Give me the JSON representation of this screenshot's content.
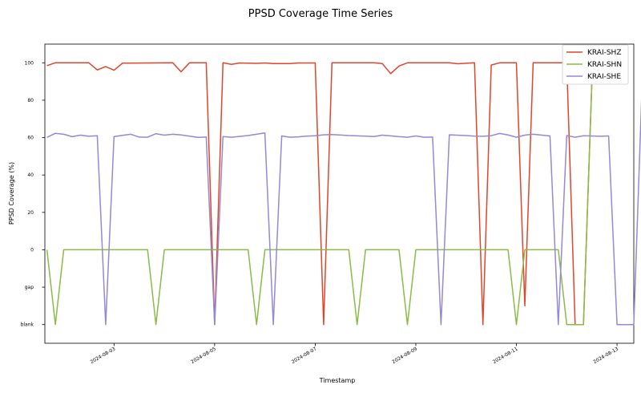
{
  "chart_data": {
    "type": "line",
    "title": "PPSD Coverage Time Series",
    "xlabel": "Timestamp",
    "ylabel": "PPSD Coverage (%)",
    "x_ticks": [
      "2024-08-03",
      "2024-08-05",
      "2024-08-07",
      "2024-08-09",
      "2024-08-11",
      "2024-08-13"
    ],
    "y_ticks": [
      "blank",
      "gap",
      "0",
      "20",
      "40",
      "60",
      "80",
      "100"
    ],
    "y_scale_note": "values below 0: -20 = gap, -40 = blank",
    "xlim": [
      "2024-08-01T15:00",
      "2024-08-13T08:00"
    ],
    "ylim": [
      -50,
      110
    ],
    "grid": false,
    "legend_position": "top-right",
    "series": [
      {
        "name": "KRAI-SHZ",
        "color": "#e0452c",
        "points": [
          [
            "2024-08-01T16:00",
            98.5
          ],
          [
            "2024-08-01T20:00",
            100
          ],
          [
            "2024-08-02T08:00",
            100
          ],
          [
            "2024-08-02T12:00",
            100
          ],
          [
            "2024-08-02T16:00",
            96.2
          ],
          [
            "2024-08-02T20:00",
            98.0
          ],
          [
            "2024-08-03T00:00",
            96.0
          ],
          [
            "2024-08-03T04:00",
            99.8
          ],
          [
            "2024-08-04T04:00",
            100
          ],
          [
            "2024-08-04T08:00",
            95.2
          ],
          [
            "2024-08-04T12:00",
            100
          ],
          [
            "2024-08-04T20:00",
            100
          ],
          [
            "2024-08-05T00:00",
            -40
          ],
          [
            "2024-08-05T04:00",
            100
          ],
          [
            "2024-08-05T08:00",
            99.2
          ],
          [
            "2024-08-05T12:00",
            99.9
          ],
          [
            "2024-08-05T20:00",
            99.7
          ],
          [
            "2024-08-06T00:00",
            99.9
          ],
          [
            "2024-08-06T04:00",
            99.6
          ],
          [
            "2024-08-06T12:00",
            99.6
          ],
          [
            "2024-08-06T16:00",
            99.9
          ],
          [
            "2024-08-07T00:00",
            99.9
          ],
          [
            "2024-08-07T04:00",
            -40
          ],
          [
            "2024-08-07T08:00",
            100
          ],
          [
            "2024-08-08T04:00",
            100
          ],
          [
            "2024-08-08T08:00",
            99.6
          ],
          [
            "2024-08-08T12:00",
            94.2
          ],
          [
            "2024-08-08T16:00",
            98.3
          ],
          [
            "2024-08-08T20:00",
            100
          ],
          [
            "2024-08-09T16:00",
            100
          ],
          [
            "2024-08-09T20:00",
            99.5
          ],
          [
            "2024-08-10T04:00",
            100
          ],
          [
            "2024-08-10T08:00",
            -40
          ],
          [
            "2024-08-10T12:00",
            98.8
          ],
          [
            "2024-08-10T16:00",
            100
          ],
          [
            "2024-08-11T00:00",
            100
          ],
          [
            "2024-08-11T04:00",
            -30
          ],
          [
            "2024-08-11T08:00",
            100
          ],
          [
            "2024-08-12T00:00",
            100
          ],
          [
            "2024-08-12T04:00",
            -40
          ],
          [
            "2024-08-12T08:00",
            -40
          ],
          [
            "2024-08-12T12:00",
            90
          ]
        ]
      },
      {
        "name": "KRAI-SHN",
        "color": "#8bbb46",
        "points": [
          [
            "2024-08-01T16:00",
            0
          ],
          [
            "2024-08-01T20:00",
            -40
          ],
          [
            "2024-08-02T00:00",
            0
          ],
          [
            "2024-08-03T16:00",
            0
          ],
          [
            "2024-08-03T20:00",
            -40
          ],
          [
            "2024-08-04T00:00",
            0
          ],
          [
            "2024-08-05T16:00",
            0
          ],
          [
            "2024-08-05T20:00",
            -40
          ],
          [
            "2024-08-06T00:00",
            0
          ],
          [
            "2024-08-07T16:00",
            0
          ],
          [
            "2024-08-07T20:00",
            -40
          ],
          [
            "2024-08-08T00:00",
            0
          ],
          [
            "2024-08-08T16:00",
            0
          ],
          [
            "2024-08-08T20:00",
            -40
          ],
          [
            "2024-08-09T00:00",
            0
          ],
          [
            "2024-08-10T20:00",
            0
          ],
          [
            "2024-08-11T00:00",
            -40
          ],
          [
            "2024-08-11T04:00",
            0
          ],
          [
            "2024-08-11T20:00",
            0
          ],
          [
            "2024-08-12T00:00",
            -40
          ],
          [
            "2024-08-12T08:00",
            -40
          ],
          [
            "2024-08-12T12:00",
            90
          ]
        ]
      },
      {
        "name": "KRAI-SHE",
        "color": "#9389d4",
        "points": [
          [
            "2024-08-01T16:00",
            60.1
          ],
          [
            "2024-08-01T20:00",
            62.3
          ],
          [
            "2024-08-02T00:00",
            61.8
          ],
          [
            "2024-08-02T04:00",
            60.5
          ],
          [
            "2024-08-02T08:00",
            61.3
          ],
          [
            "2024-08-02T12:00",
            60.7
          ],
          [
            "2024-08-02T16:00",
            61.0
          ],
          [
            "2024-08-02T20:00",
            -40
          ],
          [
            "2024-08-03T00:00",
            60.5
          ],
          [
            "2024-08-03T04:00",
            61.2
          ],
          [
            "2024-08-03T08:00",
            61.8
          ],
          [
            "2024-08-03T12:00",
            60.3
          ],
          [
            "2024-08-03T16:00",
            60.2
          ],
          [
            "2024-08-03T20:00",
            62.1
          ],
          [
            "2024-08-04T00:00",
            61.3
          ],
          [
            "2024-08-04T04:00",
            61.8
          ],
          [
            "2024-08-04T08:00",
            61.4
          ],
          [
            "2024-08-04T16:00",
            60.1
          ],
          [
            "2024-08-04T20:00",
            60.3
          ],
          [
            "2024-08-05T00:00",
            -40
          ],
          [
            "2024-08-05T04:00",
            60.6
          ],
          [
            "2024-08-05T08:00",
            60.2
          ],
          [
            "2024-08-05T16:00",
            61.1
          ],
          [
            "2024-08-06T00:00",
            62.5
          ],
          [
            "2024-08-06T04:00",
            -40
          ],
          [
            "2024-08-06T08:00",
            60.9
          ],
          [
            "2024-08-06T12:00",
            60.2
          ],
          [
            "2024-08-06T16:00",
            60.4
          ],
          [
            "2024-08-06T20:00",
            60.8
          ],
          [
            "2024-08-07T00:00",
            61.0
          ],
          [
            "2024-08-07T04:00",
            61.5
          ],
          [
            "2024-08-07T08:00",
            61.6
          ],
          [
            "2024-08-07T16:00",
            61.1
          ],
          [
            "2024-08-08T00:00",
            60.8
          ],
          [
            "2024-08-08T04:00",
            60.6
          ],
          [
            "2024-08-08T08:00",
            61.3
          ],
          [
            "2024-08-08T16:00",
            60.5
          ],
          [
            "2024-08-08T20:00",
            60.2
          ],
          [
            "2024-08-09T00:00",
            60.9
          ],
          [
            "2024-08-09T04:00",
            60.2
          ],
          [
            "2024-08-09T08:00",
            60.3
          ],
          [
            "2024-08-09T12:00",
            -40
          ],
          [
            "2024-08-09T16:00",
            61.5
          ],
          [
            "2024-08-10T00:00",
            61.1
          ],
          [
            "2024-08-10T04:00",
            60.8
          ],
          [
            "2024-08-10T08:00",
            60.7
          ],
          [
            "2024-08-10T12:00",
            61.0
          ],
          [
            "2024-08-10T16:00",
            62.2
          ],
          [
            "2024-08-10T20:00",
            61.4
          ],
          [
            "2024-08-11T00:00",
            60.2
          ],
          [
            "2024-08-11T04:00",
            61.3
          ],
          [
            "2024-08-11T08:00",
            61.8
          ],
          [
            "2024-08-11T16:00",
            60.9
          ],
          [
            "2024-08-11T20:00",
            -40
          ],
          [
            "2024-08-12T00:00",
            61.1
          ],
          [
            "2024-08-12T04:00",
            60.2
          ],
          [
            "2024-08-12T08:00",
            61.0
          ],
          [
            "2024-08-12T16:00",
            60.7
          ],
          [
            "2024-08-12T20:00",
            60.9
          ],
          [
            "2024-08-13T00:00",
            -40
          ],
          [
            "2024-08-13T08:00",
            -40
          ],
          [
            "2024-08-13T12:00",
            90
          ]
        ]
      }
    ]
  }
}
